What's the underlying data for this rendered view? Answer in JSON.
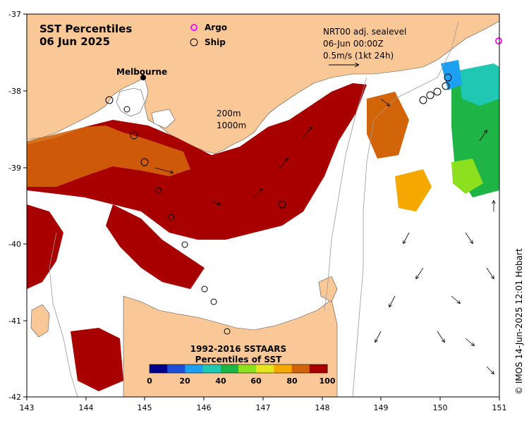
{
  "title": {
    "line1": "SST Percentiles",
    "line2": "06 Jun 2025"
  },
  "legend_markers": {
    "argo": "Argo",
    "ship": "Ship"
  },
  "current_info": {
    "line1": "NRT00 adj. sealevel",
    "line2": "06-Jun 00:00Z",
    "line3": "0.5m/s (1kt 24h)"
  },
  "isobaths": {
    "depth1": "200m",
    "depth2": "1000m"
  },
  "places": {
    "melbourne": "Melbourne"
  },
  "axes": {
    "x_ticks": [
      "143",
      "144",
      "145",
      "146",
      "147",
      "148",
      "149",
      "150",
      "151"
    ],
    "y_ticks": [
      "-37",
      "-38",
      "-39",
      "-40",
      "-41",
      "-42"
    ]
  },
  "colorbar": {
    "title1": "1992-2016 SSTAARS",
    "title2": "Percentiles of SST",
    "ticks": [
      "0",
      "20",
      "40",
      "60",
      "80",
      "100"
    ],
    "colors": [
      "#00008b",
      "#1f4fd8",
      "#1ea0f0",
      "#20c8b4",
      "#1fb446",
      "#8ce01e",
      "#e6e61e",
      "#f5a800",
      "#d2640a",
      "#a80000"
    ]
  },
  "credit": "© IMOS 14-Jun-2025 12:01 Hobart",
  "colors": {
    "land": "#fac896",
    "hot": "#a80000",
    "warm": "#d2640a",
    "orange": "#f5a800"
  }
}
